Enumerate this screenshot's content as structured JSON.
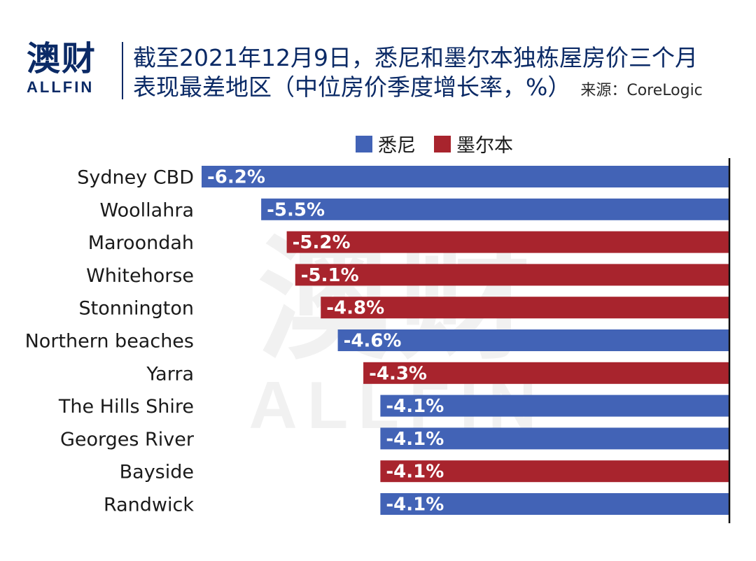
{
  "logo": {
    "cn": "澳财",
    "en": "ALLFIN"
  },
  "header": {
    "title_line1": "截至2021年12月9日，悉尼和墨尔本独栋屋房价三个月",
    "title_line2": "表现最差地区（中位房价季度增长率，%）",
    "source": "来源：CoreLogic"
  },
  "chart_data": {
    "type": "bar",
    "orientation": "horizontal",
    "categories": [
      "Sydney CBD",
      "Woollahra",
      "Maroondah",
      "Whitehorse",
      "Stonnington",
      "Northern beaches",
      "Yarra",
      "The Hills Shire",
      "Georges River",
      "Bayside",
      "Randwick"
    ],
    "values": [
      -6.2,
      -5.5,
      -5.2,
      -5.1,
      -4.8,
      -4.6,
      -4.3,
      -4.1,
      -4.1,
      -4.1,
      -4.1
    ],
    "value_labels": [
      "-6.2%",
      "-5.5%",
      "-5.2%",
      "-5.1%",
      "-4.8%",
      "-4.6%",
      "-4.3%",
      "-4.1%",
      "-4.1%",
      "-4.1%",
      "-4.1%"
    ],
    "city": [
      "悉尼",
      "悉尼",
      "墨尔本",
      "墨尔本",
      "墨尔本",
      "悉尼",
      "墨尔本",
      "悉尼",
      "悉尼",
      "墨尔本",
      "悉尼"
    ],
    "series": [
      {
        "name": "悉尼",
        "color": "#4263b6"
      },
      {
        "name": "墨尔本",
        "color": "#a8242d"
      }
    ],
    "xlim": [
      -6.2,
      0
    ],
    "legend_position": "top-center",
    "grid": false
  }
}
